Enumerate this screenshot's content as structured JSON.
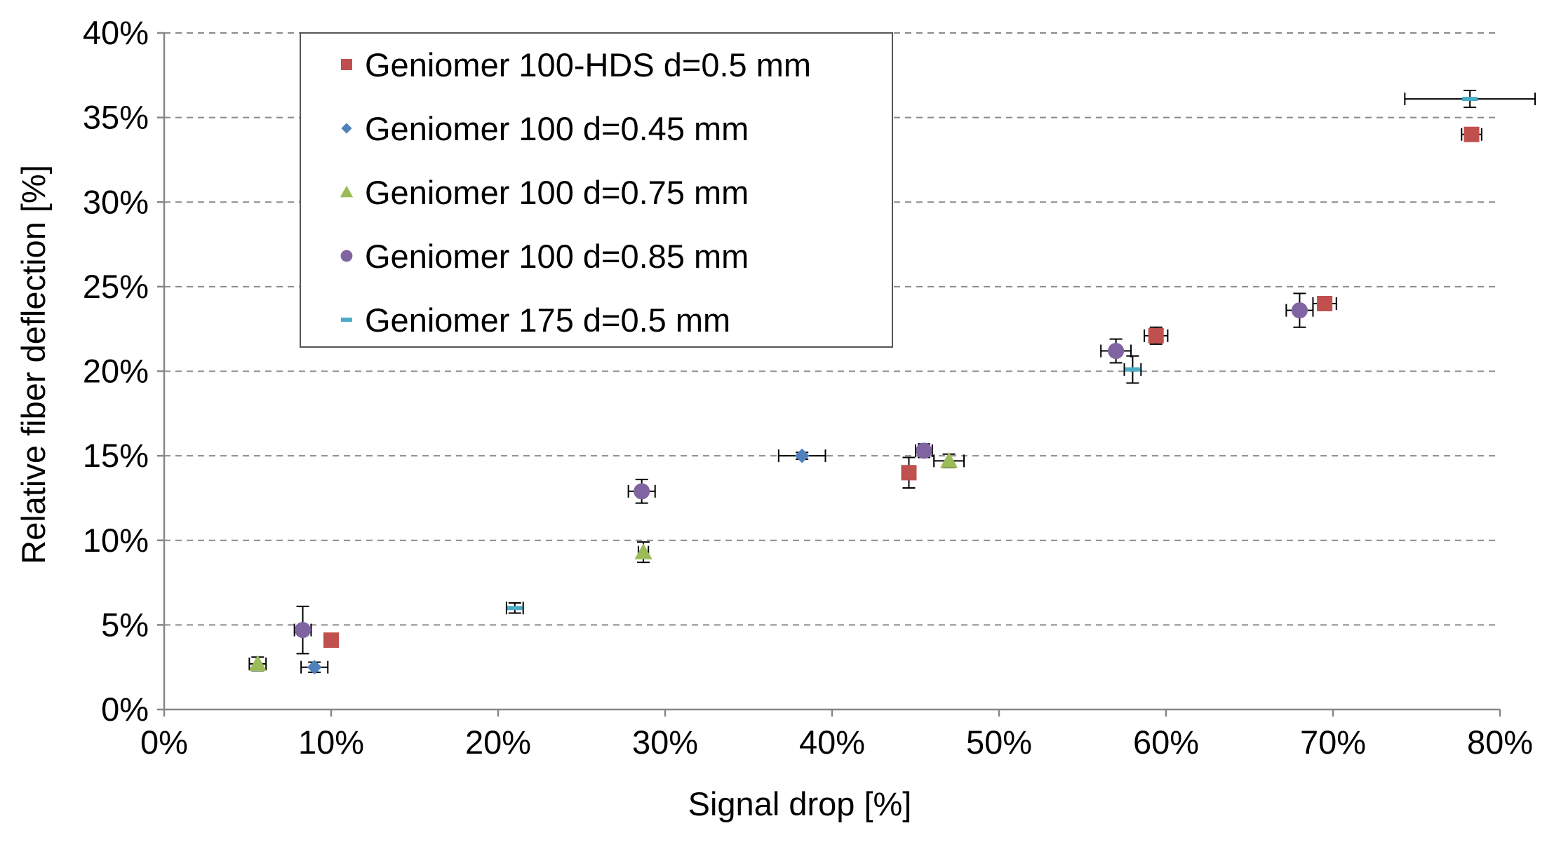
{
  "chart_data": {
    "type": "scatter",
    "title": "",
    "xlabel": "Signal drop [%]",
    "ylabel": "Relative fiber deflection [%]",
    "xlim": [
      0,
      80
    ],
    "ylim": [
      0,
      40
    ],
    "x_ticks": [
      0,
      10,
      20,
      30,
      40,
      50,
      60,
      70,
      80
    ],
    "y_ticks": [
      0,
      5,
      10,
      15,
      20,
      25,
      30,
      35,
      40
    ],
    "x_tick_labels": [
      "0%",
      "10%",
      "20%",
      "30%",
      "40%",
      "50%",
      "60%",
      "70%",
      "80%"
    ],
    "y_tick_labels": [
      "0%",
      "5%",
      "10%",
      "15%",
      "20%",
      "25%",
      "30%",
      "35%",
      "40%"
    ],
    "grid": "horizontal dashed",
    "legend_position": "top-left",
    "series": [
      {
        "name": "Geniomer 100-HDS d=0.5 mm",
        "marker": "square",
        "color": "#c0504d",
        "points": [
          {
            "x": 10.0,
            "y": 4.1,
            "xerr": 0.4,
            "yerr": 0.4
          },
          {
            "x": 44.6,
            "y": 14.0,
            "xerr": 0.4,
            "yerr": 0.9
          },
          {
            "x": 59.4,
            "y": 22.1,
            "xerr": 0.7,
            "yerr": 0.5
          },
          {
            "x": 69.5,
            "y": 24.0,
            "xerr": 0.7,
            "yerr": 0.3
          },
          {
            "x": 78.3,
            "y": 34.0,
            "xerr": 0.6,
            "yerr": 0.4
          }
        ]
      },
      {
        "name": "Geniomer 100 d=0.45 mm",
        "marker": "diamond",
        "color": "#4f81bd",
        "points": [
          {
            "x": 9.0,
            "y": 2.5,
            "xerr": 0.8,
            "yerr": 0.3
          },
          {
            "x": 38.2,
            "y": 15.0,
            "xerr": 1.4,
            "yerr": 0.2
          }
        ]
      },
      {
        "name": "Geniomer 100 d=0.75 mm",
        "marker": "triangle",
        "color": "#9bbb59",
        "points": [
          {
            "x": 5.6,
            "y": 2.7,
            "xerr": 0.5,
            "yerr": 0.4
          },
          {
            "x": 28.7,
            "y": 9.3,
            "xerr": 0.3,
            "yerr": 0.6
          },
          {
            "x": 47.0,
            "y": 14.7,
            "xerr": 0.9,
            "yerr": 0.4
          }
        ]
      },
      {
        "name": "Geniomer 100 d=0.85 mm",
        "marker": "circle",
        "color": "#8064a2",
        "points": [
          {
            "x": 8.3,
            "y": 4.7,
            "xerr": 0.5,
            "yerr": 1.4
          },
          {
            "x": 28.6,
            "y": 12.9,
            "xerr": 0.8,
            "yerr": 0.7
          },
          {
            "x": 45.5,
            "y": 15.3,
            "xerr": 0.5,
            "yerr": 0.4
          },
          {
            "x": 57.0,
            "y": 21.2,
            "xerr": 0.9,
            "yerr": 0.7
          },
          {
            "x": 68.0,
            "y": 23.6,
            "xerr": 0.8,
            "yerr": 1.0
          }
        ]
      },
      {
        "name": "Geniomer 175 d=0.5 mm",
        "marker": "dash",
        "color": "#4bacc6",
        "points": [
          {
            "x": 21.0,
            "y": 6.0,
            "xerr": 0.5,
            "yerr": 0.3
          },
          {
            "x": 58.0,
            "y": 20.1,
            "xerr": 0.5,
            "yerr": 0.8
          },
          {
            "x": 78.2,
            "y": 36.1,
            "xerr": 3.9,
            "yerr": 0.5
          }
        ]
      }
    ]
  }
}
